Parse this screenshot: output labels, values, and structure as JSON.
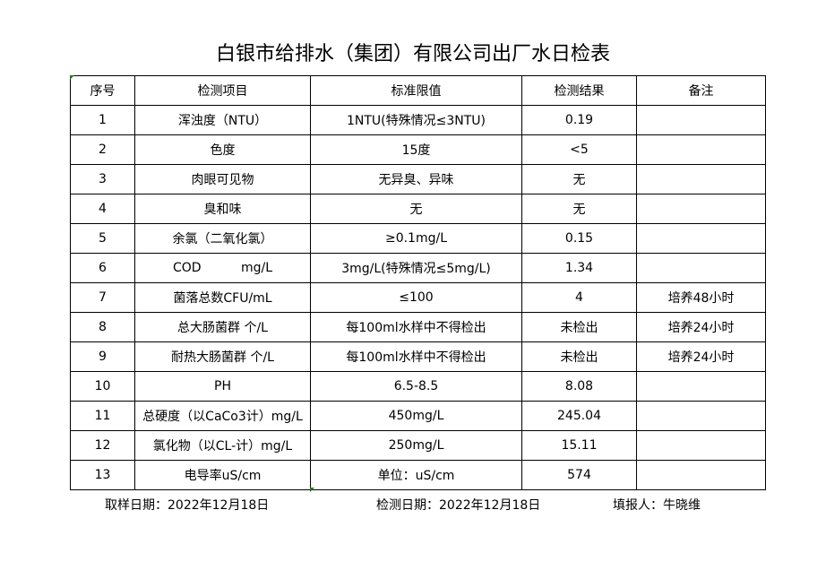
{
  "title": "白银市给排水（集团）有限公司出厂水日检表",
  "table": {
    "headers": [
      "序号",
      "检测项目",
      "标准限值",
      "检测结果",
      "备注"
    ],
    "rows": [
      [
        "1",
        "浑浊度（NTU）",
        "1NTU(特殊情况≤3NTU)",
        "0.19",
        ""
      ],
      [
        "2",
        "色度",
        "15度",
        "<5",
        ""
      ],
      [
        "3",
        "肉眼可见物",
        "无异臭、异味",
        "无",
        ""
      ],
      [
        "4",
        "臭和味",
        "无",
        "无",
        ""
      ],
      [
        "5",
        "余氯（二氧化氯）",
        "≥0.1mg/L",
        "0.15",
        ""
      ],
      [
        "6",
        "COD          mg/L",
        "3mg/L(特殊情况≤5mg/L)",
        "1.34",
        ""
      ],
      [
        "7",
        "菌落总数CFU/mL",
        "≤100",
        "4",
        "培养48小时"
      ],
      [
        "8",
        "总大肠菌群 个/L",
        "每100ml水样中不得检出",
        "未检出",
        "培养24小时"
      ],
      [
        "9",
        "耐热大肠菌群 个/L",
        "每100ml水样中不得检出",
        "未检出",
        "培养24小时"
      ],
      [
        "10",
        "PH",
        "6.5-8.5",
        "8.08",
        ""
      ],
      [
        "11",
        "总硬度（以CaCo3计）mg/L",
        "450mg/L",
        "245.04",
        ""
      ],
      [
        "12",
        "氯化物（以CL-计）mg/L",
        "250mg/L",
        "15.11",
        ""
      ],
      [
        "13",
        "电导率uS/cm",
        "单位：uS/cm",
        "574",
        ""
      ]
    ]
  },
  "footer": {
    "sampling_date": "取样日期：2022年12月18日",
    "test_date": "检测日期：2022年12月18日",
    "reporter": "填报人：牛晓维"
  },
  "colors": {
    "cell_marker": "#1f7a1f"
  }
}
